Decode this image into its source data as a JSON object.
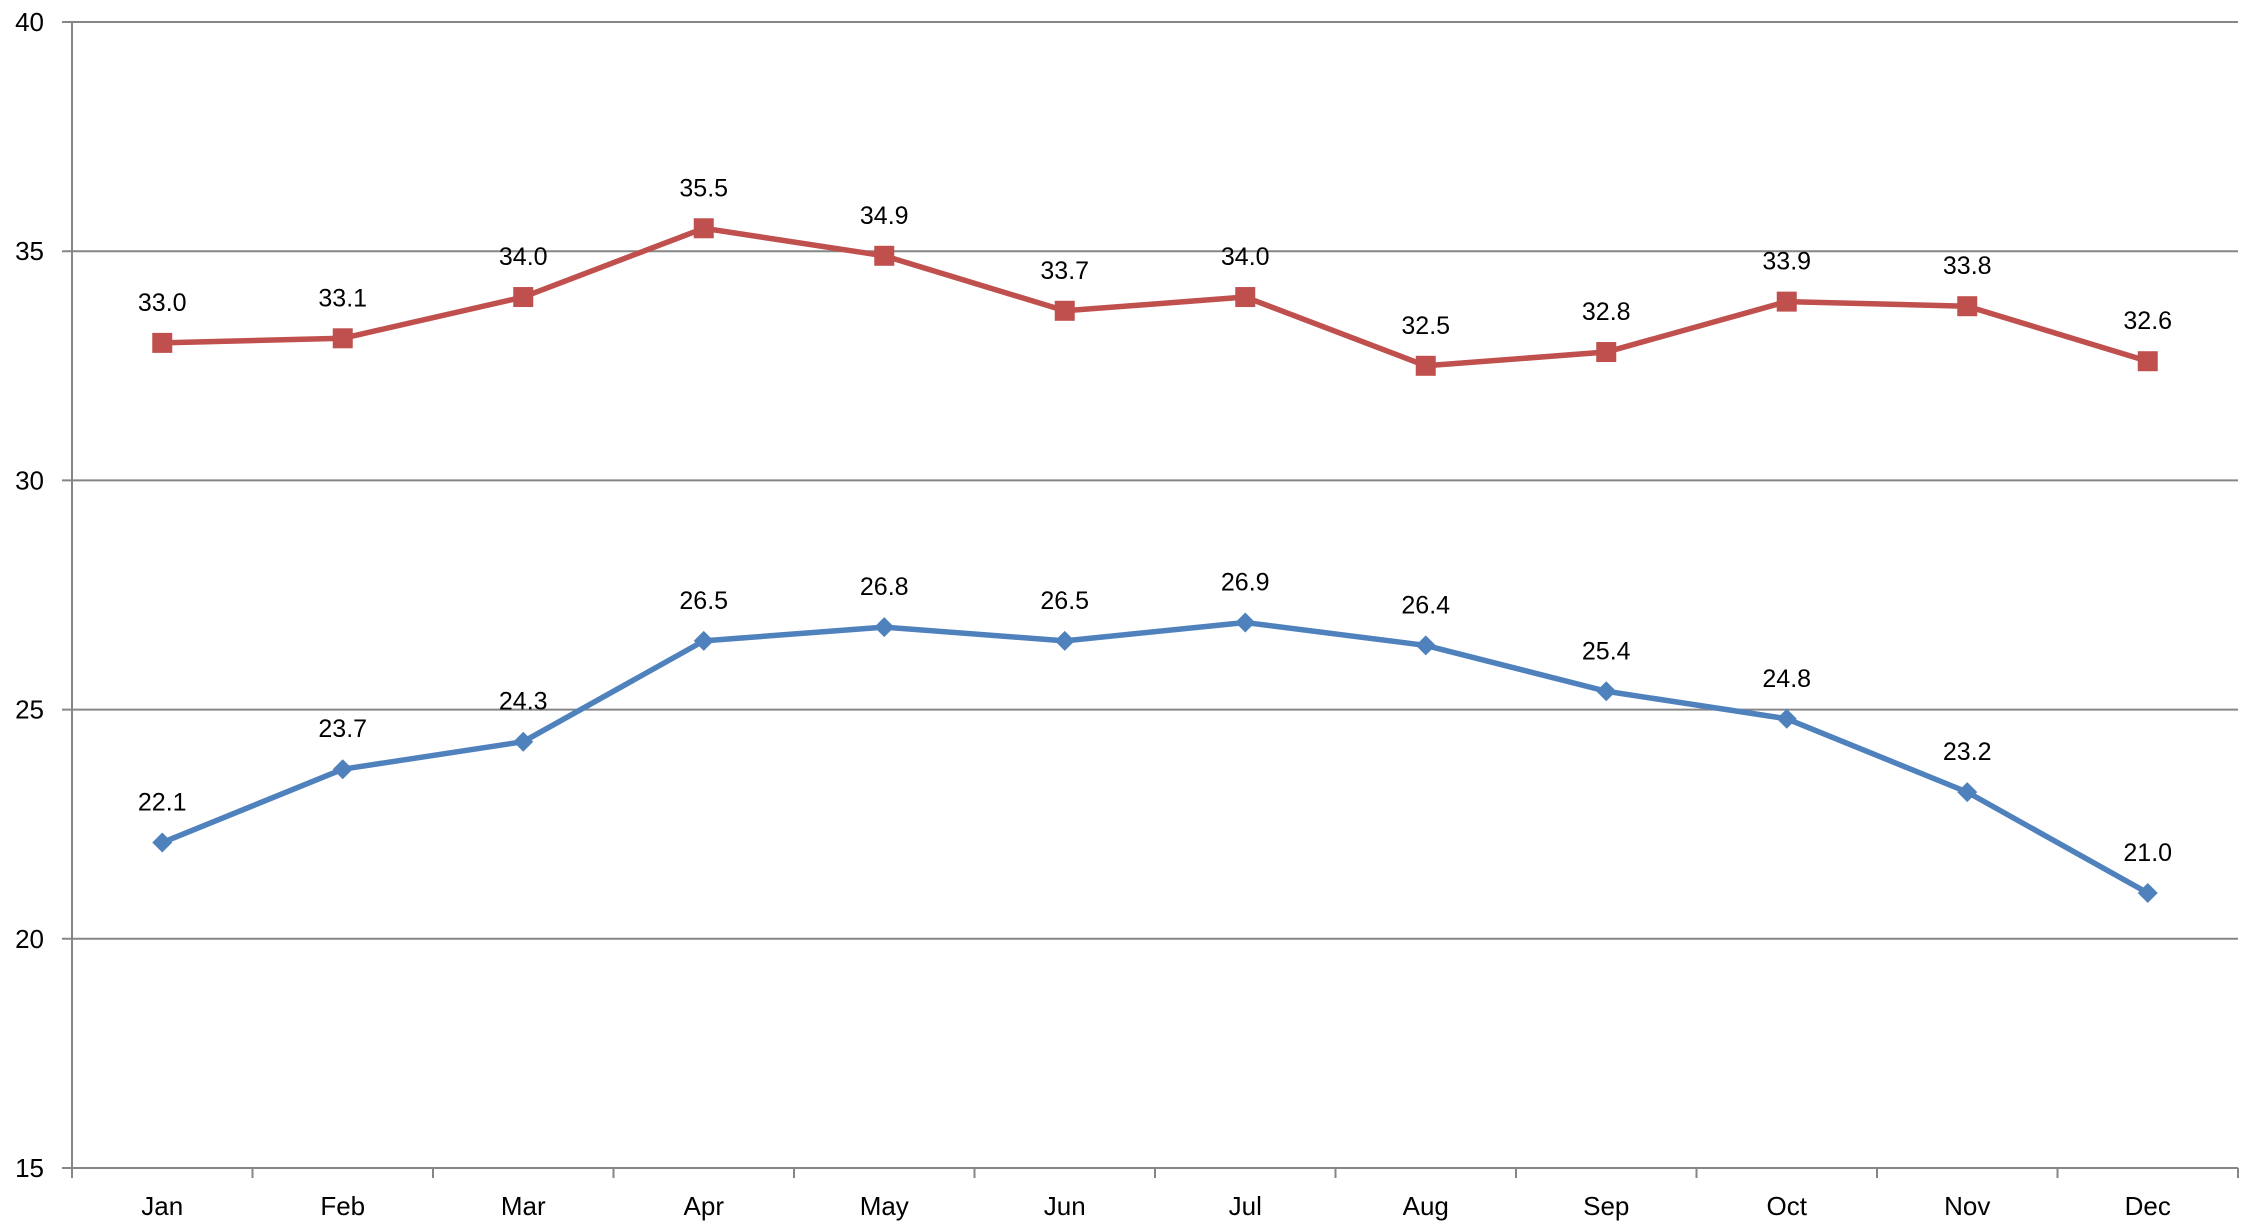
{
  "chart_data": {
    "type": "line",
    "title": "",
    "xlabel": "",
    "ylabel": "",
    "categories": [
      "Jan",
      "Feb",
      "Mar",
      "Apr",
      "May",
      "Jun",
      "Jul",
      "Aug",
      "Sep",
      "Oct",
      "Nov",
      "Dec"
    ],
    "ylim": [
      15,
      40
    ],
    "yticks": [
      15,
      20,
      25,
      30,
      35,
      40
    ],
    "grid": true,
    "legend": "none",
    "series": [
      {
        "values": [
          33.0,
          33.1,
          34.0,
          35.5,
          34.9,
          33.7,
          34.0,
          32.5,
          32.8,
          33.9,
          33.8,
          32.6
        ],
        "color": "#C0504D",
        "marker": "square"
      },
      {
        "values": [
          22.1,
          23.7,
          24.3,
          26.5,
          26.8,
          26.5,
          26.9,
          26.4,
          25.4,
          24.8,
          23.2,
          21.0
        ],
        "color": "#4F81BD",
        "marker": "diamond"
      }
    ]
  }
}
